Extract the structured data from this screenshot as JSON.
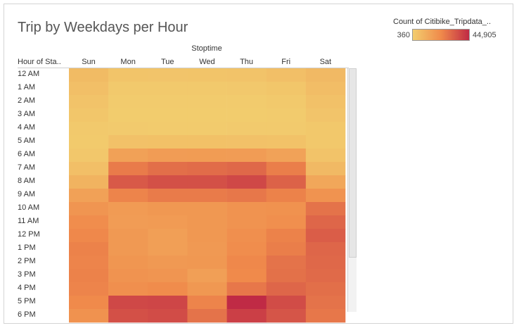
{
  "chart_data": {
    "type": "heatmap",
    "title": "Trip by Weekdays per Hour",
    "column_header": "Stoptime",
    "row_header": "Hour of Sta..",
    "legend": {
      "title": "Count of Citibike_Tripdata_..",
      "min_label": "360",
      "max_label": "44,905",
      "min": 360,
      "max": 44905,
      "color_low": "#f2cd6e",
      "color_mid": "#f08a4b",
      "color_high": "#c02a45"
    },
    "columns": [
      "Sun",
      "Mon",
      "Tue",
      "Wed",
      "Thu",
      "Fri",
      "Sat"
    ],
    "rows": [
      "12 AM",
      "1 AM",
      "2 AM",
      "3 AM",
      "4 AM",
      "5 AM",
      "6 AM",
      "7 AM",
      "8 AM",
      "9 AM",
      "10 AM",
      "11 AM",
      "12 PM",
      "1 PM",
      "2 PM",
      "3 PM",
      "4 PM",
      "5 PM",
      "6 PM"
    ],
    "values": [
      [
        6500,
        3500,
        3200,
        3400,
        3800,
        5000,
        7000
      ],
      [
        5000,
        1800,
        1600,
        1700,
        1900,
        2600,
        5600
      ],
      [
        3800,
        1100,
        1000,
        1000,
        1100,
        1600,
        4200
      ],
      [
        2800,
        800,
        700,
        700,
        800,
        1100,
        3200
      ],
      [
        1800,
        1200,
        1100,
        1100,
        1200,
        1300,
        2000
      ],
      [
        1500,
        4200,
        4500,
        4500,
        4300,
        4000,
        2100
      ],
      [
        2500,
        15000,
        16500,
        16800,
        16500,
        14500,
        3800
      ],
      [
        5000,
        26000,
        29000,
        29500,
        30500,
        25500,
        7000
      ],
      [
        9000,
        34000,
        36000,
        36000,
        38000,
        32000,
        13000
      ],
      [
        15000,
        24000,
        26000,
        26000,
        27000,
        24500,
        19500
      ],
      [
        19000,
        17000,
        18000,
        18000,
        19500,
        20000,
        28000
      ],
      [
        21500,
        16500,
        17000,
        18000,
        19500,
        21000,
        31000
      ],
      [
        23000,
        17500,
        15500,
        18000,
        21000,
        24500,
        33000
      ],
      [
        24500,
        17500,
        15500,
        17500,
        21500,
        25500,
        31000
      ],
      [
        24000,
        18500,
        17500,
        18000,
        23000,
        28000,
        30500
      ],
      [
        24500,
        19500,
        19000,
        15500,
        22500,
        28500,
        30000
      ],
      [
        24000,
        21000,
        22000,
        18000,
        27000,
        31000,
        29000
      ],
      [
        22500,
        38000,
        38500,
        24000,
        44905,
        37000,
        28000
      ],
      [
        20000,
        36000,
        37000,
        28000,
        40000,
        35000,
        27000
      ]
    ]
  }
}
